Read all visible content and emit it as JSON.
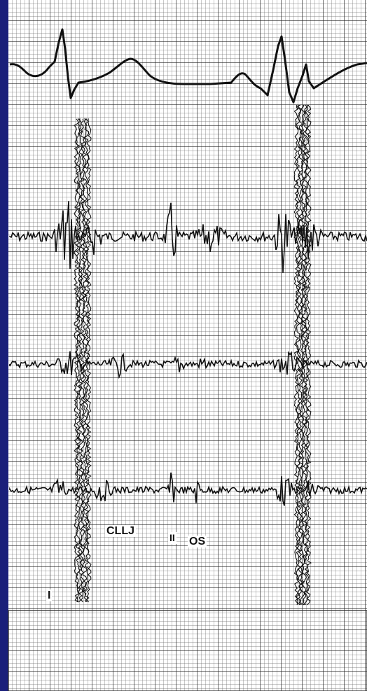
{
  "labels": {
    "first_sound": "I",
    "click": "CLLJ",
    "second_sound": "II",
    "opening_snap": "OS"
  },
  "colors": {
    "background": "#1a1f7a",
    "paper": "#ffffff",
    "grid": "#555555",
    "trace": "#111111"
  }
}
